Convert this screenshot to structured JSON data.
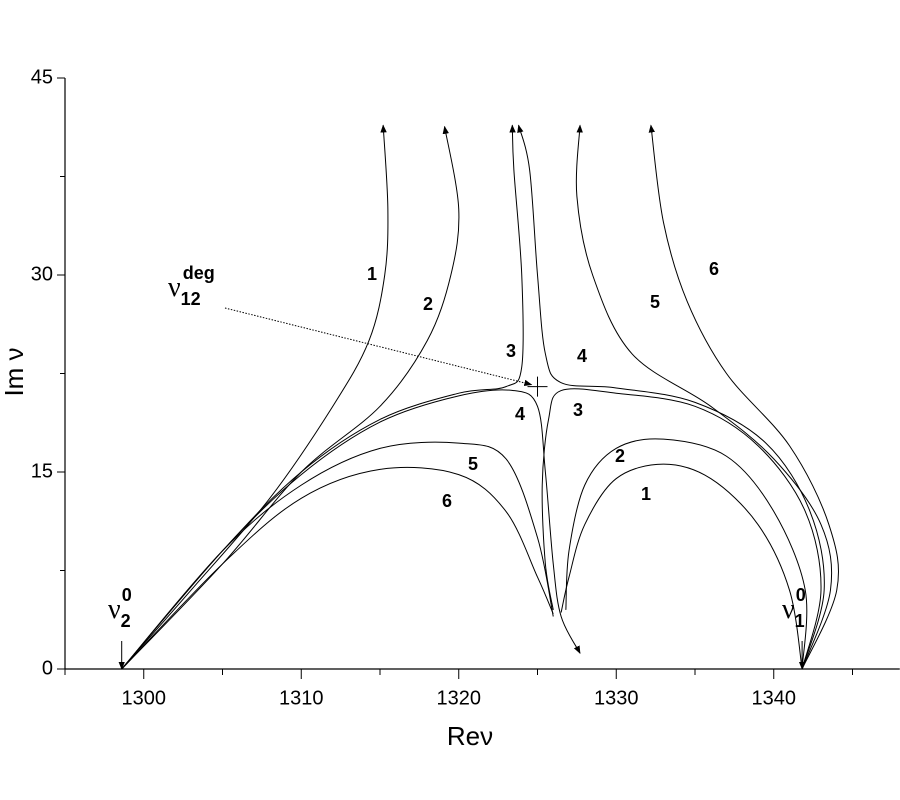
{
  "chart_data": {
    "type": "line",
    "xlabel": "Reν",
    "ylabel": "Im ν",
    "xlim": [
      1295,
      1348
    ],
    "ylim": [
      0,
      45
    ],
    "xticks": [
      1300,
      1310,
      1320,
      1330,
      1340
    ],
    "xminor": [
      1295,
      1305,
      1315,
      1325,
      1335,
      1345
    ],
    "yticks": [
      0,
      15,
      30,
      45
    ],
    "yminor": [
      7.5,
      22.5,
      37.5
    ],
    "color": "#000000",
    "series": [
      {
        "name": "1",
        "arrow": true,
        "x": [
          1298.6,
          1303,
          1308,
          1312,
          1314.3,
          1315.3,
          1315.5,
          1315.2
        ],
        "values": [
          0,
          6,
          13,
          20,
          25,
          30,
          35,
          41.4
        ]
      },
      {
        "name": "2",
        "arrow": true,
        "x": [
          1298.6,
          1305,
          1310,
          1315,
          1318,
          1319.5,
          1320,
          1319.1
        ],
        "values": [
          0,
          8,
          15,
          20,
          25,
          30,
          35,
          41.3
        ]
      },
      {
        "name": "3",
        "arrow": true,
        "x": [
          1298.6,
          1305,
          1310,
          1315,
          1320,
          1323,
          1324,
          1324,
          1323.5,
          1323.4
        ],
        "values": [
          0,
          9,
          15,
          19,
          21,
          21.5,
          23,
          30,
          38,
          41.4
        ]
      },
      {
        "name": "4",
        "arrow": true,
        "x": [
          1298.6,
          1305,
          1310,
          1315,
          1320,
          1323.5,
          1325,
          1325.5,
          1326,
          1326.5,
          1327.7
        ],
        "values": [
          0,
          9,
          14.8,
          18.8,
          20.8,
          21.2,
          20,
          15,
          8,
          4,
          1.2
        ]
      },
      {
        "name": "5",
        "arrow": false,
        "x": [
          1298.6,
          1305,
          1310,
          1315,
          1320,
          1323,
          1325,
          1326
        ],
        "values": [
          0,
          9,
          14,
          16.8,
          17.2,
          16,
          10,
          4
        ]
      },
      {
        "name": "6",
        "arrow": false,
        "x": [
          1298.6,
          1305,
          1310,
          1315,
          1320,
          1323,
          1325,
          1326
        ],
        "values": [
          0,
          8,
          13,
          15.2,
          14.8,
          12,
          7,
          4.2
        ]
      },
      {
        "name": "1",
        "arrow": false,
        "x": [
          1341.8,
          1341,
          1339,
          1336,
          1333,
          1330,
          1328,
          1327,
          1326.5
        ],
        "values": [
          0,
          6,
          11,
          14.5,
          15.6,
          14.5,
          11,
          7,
          4.3
        ]
      },
      {
        "name": "2",
        "arrow": false,
        "x": [
          1341.8,
          1342,
          1340,
          1337,
          1333,
          1330,
          1328,
          1327,
          1326.8
        ],
        "values": [
          0,
          6,
          12,
          16.2,
          17.5,
          16.8,
          14,
          9,
          4.5
        ]
      },
      {
        "name": "3",
        "arrow": false,
        "x": [
          1341.8,
          1343,
          1342,
          1339,
          1335,
          1330,
          1326.5,
          1325.7,
          1325.3,
          1325.5,
          1326
        ],
        "values": [
          0,
          6,
          12,
          17,
          20,
          21,
          21.2,
          19,
          14,
          8,
          4.5
        ]
      },
      {
        "name": "4",
        "arrow": true,
        "x": [
          1341.8,
          1343.2,
          1342.3,
          1339.5,
          1335,
          1330,
          1326.5,
          1325.5,
          1325,
          1324.5,
          1323.8
        ],
        "values": [
          0,
          6,
          12,
          17.2,
          20.3,
          21.4,
          21.8,
          24,
          30,
          38,
          41.4
        ]
      },
      {
        "name": "5",
        "arrow": true,
        "x": [
          1341.8,
          1343.6,
          1343,
          1340,
          1336,
          1331,
          1328.5,
          1327.5,
          1327.7
        ],
        "values": [
          0,
          6,
          11,
          16,
          20,
          24,
          30,
          36,
          41.4
        ]
      },
      {
        "name": "6",
        "arrow": true,
        "x": [
          1341.8,
          1344,
          1343.5,
          1341,
          1337,
          1334.5,
          1333,
          1332.2
        ],
        "values": [
          0,
          6,
          11,
          17,
          22.5,
          28,
          34,
          41.4
        ]
      }
    ],
    "annotations": [
      {
        "text": "ν",
        "sub": "2",
        "sup": "0",
        "x": 1298.6,
        "y": 0
      },
      {
        "text": "ν",
        "sub": "1",
        "sup": "0",
        "x": 1341.8,
        "y": 0
      },
      {
        "text": "ν",
        "sub": "12",
        "sup": "deg",
        "x": 1325,
        "y": 21.5
      }
    ]
  }
}
